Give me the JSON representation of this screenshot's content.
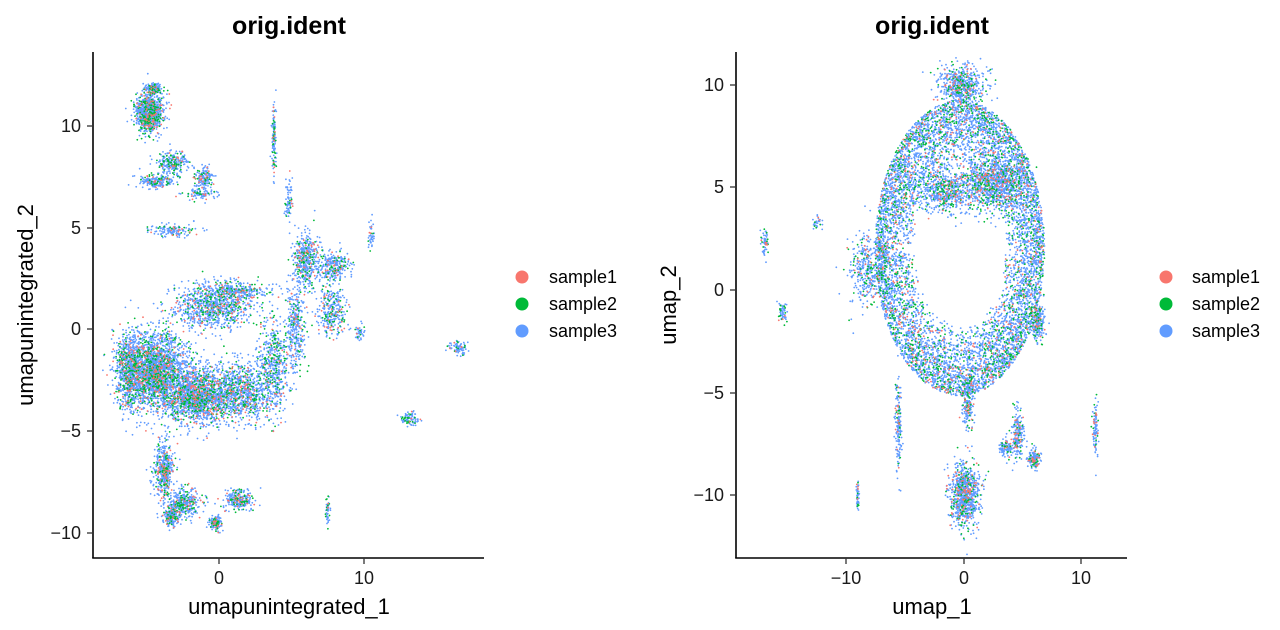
{
  "chart_data": [
    {
      "type": "scatter",
      "title": "orig.ident",
      "xlabel": "umapunintegrated_1",
      "ylabel": "umapunintegrated_2",
      "xlim": [
        -8.7,
        18.3
      ],
      "ylim": [
        -11.2,
        13.8
      ],
      "xticks": [
        0,
        10
      ],
      "yticks": [
        10,
        5,
        0,
        -5,
        -10
      ],
      "tick_labels": {
        "x": [
          "0",
          "10"
        ],
        "y": [
          "10",
          "5",
          "0",
          "−5",
          "−10"
        ]
      },
      "grid": false,
      "legend_placement": "right",
      "series": [
        {
          "name": "sample1",
          "color": "#F8766D"
        },
        {
          "name": "sample2",
          "color": "#00BA38"
        },
        {
          "name": "sample3",
          "color": "#619CFF"
        }
      ],
      "mix": [
        0.08,
        0.16,
        0.76
      ],
      "clusters": [
        {
          "x": -4.8,
          "y": 10.8,
          "sx": 0.85,
          "sy": 0.9,
          "n": 900
        },
        {
          "x": -4.5,
          "y": 12.0,
          "sx": 0.6,
          "sy": 0.25,
          "n": 150
        },
        {
          "x": -3.2,
          "y": 8.3,
          "sx": 1.0,
          "sy": 0.55,
          "n": 260
        },
        {
          "x": -4.3,
          "y": 7.4,
          "sx": 1.1,
          "sy": 0.3,
          "n": 200
        },
        {
          "x": -1.0,
          "y": 7.6,
          "sx": 0.55,
          "sy": 0.45,
          "n": 160
        },
        {
          "x": -1.3,
          "y": 6.8,
          "sx": 1.0,
          "sy": 0.25,
          "n": 90
        },
        {
          "x": -3.2,
          "y": 5.0,
          "sx": 1.4,
          "sy": 0.3,
          "n": 140
        },
        {
          "x": 3.8,
          "y": 9.5,
          "sx": 0.12,
          "sy": 1.6,
          "n": 130
        },
        {
          "x": 4.8,
          "y": 6.5,
          "sx": 0.25,
          "sy": 1.1,
          "n": 70
        },
        {
          "x": 6.0,
          "y": 3.5,
          "sx": 0.8,
          "sy": 1.2,
          "n": 450
        },
        {
          "x": 7.9,
          "y": 3.2,
          "sx": 1.0,
          "sy": 0.6,
          "n": 280
        },
        {
          "x": 7.8,
          "y": 1.0,
          "sx": 0.9,
          "sy": 1.1,
          "n": 320
        },
        {
          "x": 5.3,
          "y": 0.2,
          "sx": 0.6,
          "sy": 2.0,
          "n": 340
        },
        {
          "x": 3.8,
          "y": -1.5,
          "sx": 1.1,
          "sy": 2.1,
          "n": 520
        },
        {
          "x": 1.3,
          "y": 2.0,
          "sx": 2.0,
          "sy": 0.4,
          "n": 300
        },
        {
          "x": -0.5,
          "y": 1.2,
          "sx": 2.5,
          "sy": 1.0,
          "n": 900
        },
        {
          "x": -4.5,
          "y": -2.0,
          "sx": 2.1,
          "sy": 1.7,
          "n": 2600
        },
        {
          "x": -1.5,
          "y": -3.2,
          "sx": 2.0,
          "sy": 1.2,
          "n": 1600
        },
        {
          "x": 1.5,
          "y": -3.0,
          "sx": 2.1,
          "sy": 1.3,
          "n": 1000
        },
        {
          "x": -6.3,
          "y": -2.0,
          "sx": 0.7,
          "sy": 1.7,
          "n": 500
        },
        {
          "x": -3.8,
          "y": -6.8,
          "sx": 0.6,
          "sy": 1.3,
          "n": 450
        },
        {
          "x": -2.5,
          "y": -8.5,
          "sx": 1.1,
          "sy": 0.6,
          "n": 380
        },
        {
          "x": -3.3,
          "y": -9.2,
          "sx": 0.5,
          "sy": 0.4,
          "n": 180
        },
        {
          "x": 1.3,
          "y": -8.3,
          "sx": 1.0,
          "sy": 0.45,
          "n": 260
        },
        {
          "x": -0.2,
          "y": -9.5,
          "sx": 0.4,
          "sy": 0.35,
          "n": 120
        },
        {
          "x": 10.5,
          "y": 4.7,
          "sx": 0.15,
          "sy": 0.6,
          "n": 40
        },
        {
          "x": 9.7,
          "y": 0.0,
          "sx": 0.3,
          "sy": 0.4,
          "n": 40
        },
        {
          "x": 16.5,
          "y": -0.8,
          "sx": 0.55,
          "sy": 0.35,
          "n": 80
        },
        {
          "x": 13.2,
          "y": -4.3,
          "sx": 0.55,
          "sy": 0.3,
          "n": 90
        },
        {
          "x": 7.5,
          "y": -8.8,
          "sx": 0.12,
          "sy": 0.7,
          "n": 50
        }
      ]
    },
    {
      "type": "scatter",
      "title": "orig.ident",
      "xlabel": "umap_1",
      "ylabel": "umap_2",
      "xlim": [
        -19.5,
        14.2
      ],
      "ylim": [
        -13.2,
        10.8
      ],
      "xticks": [
        -10,
        0,
        10
      ],
      "yticks": [
        10,
        5,
        0,
        -5,
        -10
      ],
      "tick_labels": {
        "x": [
          "−10",
          "0",
          "10"
        ],
        "y": [
          "10",
          "5",
          "0",
          "−5",
          "−10"
        ]
      },
      "grid": false,
      "legend_placement": "right",
      "series": [
        {
          "name": "sample1",
          "color": "#F8766D"
        },
        {
          "name": "sample2",
          "color": "#00BA38"
        },
        {
          "name": "sample3",
          "color": "#619CFF"
        }
      ],
      "mix": [
        0.08,
        0.15,
        0.77
      ],
      "rings": [
        {
          "cx": -0.2,
          "cy": 1.5,
          "r0x": 3.8,
          "r0y": 3.6,
          "r1x": 7.3,
          "r1y": 7.0,
          "n": 7500
        }
      ],
      "clusters": [
        {
          "x": 0.0,
          "y": 9.2,
          "sx": 1.8,
          "sy": 0.8,
          "n": 600
        },
        {
          "x": 2.5,
          "y": 4.5,
          "sx": 2.5,
          "sy": 1.2,
          "n": 1000
        },
        {
          "x": -1.5,
          "y": 4.2,
          "sx": 2.0,
          "sy": 1.0,
          "n": 600
        },
        {
          "x": 6.5,
          "y": -2.0,
          "sx": 0.6,
          "sy": 0.9,
          "n": 250
        },
        {
          "x": -8.0,
          "y": 0.5,
          "sx": 1.5,
          "sy": 1.5,
          "n": 450
        },
        {
          "x": -12.5,
          "y": 2.7,
          "sx": 0.35,
          "sy": 0.25,
          "n": 30
        },
        {
          "x": -17.0,
          "y": 1.8,
          "sx": 0.35,
          "sy": 0.55,
          "n": 60
        },
        {
          "x": -15.5,
          "y": -1.6,
          "sx": 0.3,
          "sy": 0.5,
          "n": 60
        },
        {
          "x": -5.5,
          "y": -7.0,
          "sx": 0.25,
          "sy": 2.0,
          "n": 170
        },
        {
          "x": -9.0,
          "y": -10.3,
          "sx": 0.12,
          "sy": 0.6,
          "n": 50
        },
        {
          "x": 0.2,
          "y": -10.2,
          "sx": 1.1,
          "sy": 1.3,
          "n": 900
        },
        {
          "x": 0.5,
          "y": -5.8,
          "sx": 0.45,
          "sy": 1.3,
          "n": 220
        },
        {
          "x": 4.8,
          "y": -7.3,
          "sx": 0.45,
          "sy": 1.0,
          "n": 220
        },
        {
          "x": 6.2,
          "y": -8.5,
          "sx": 0.5,
          "sy": 0.4,
          "n": 170
        },
        {
          "x": 3.8,
          "y": -8.0,
          "sx": 0.6,
          "sy": 0.4,
          "n": 100
        },
        {
          "x": 11.5,
          "y": -7.0,
          "sx": 0.25,
          "sy": 1.1,
          "n": 100
        }
      ]
    }
  ]
}
